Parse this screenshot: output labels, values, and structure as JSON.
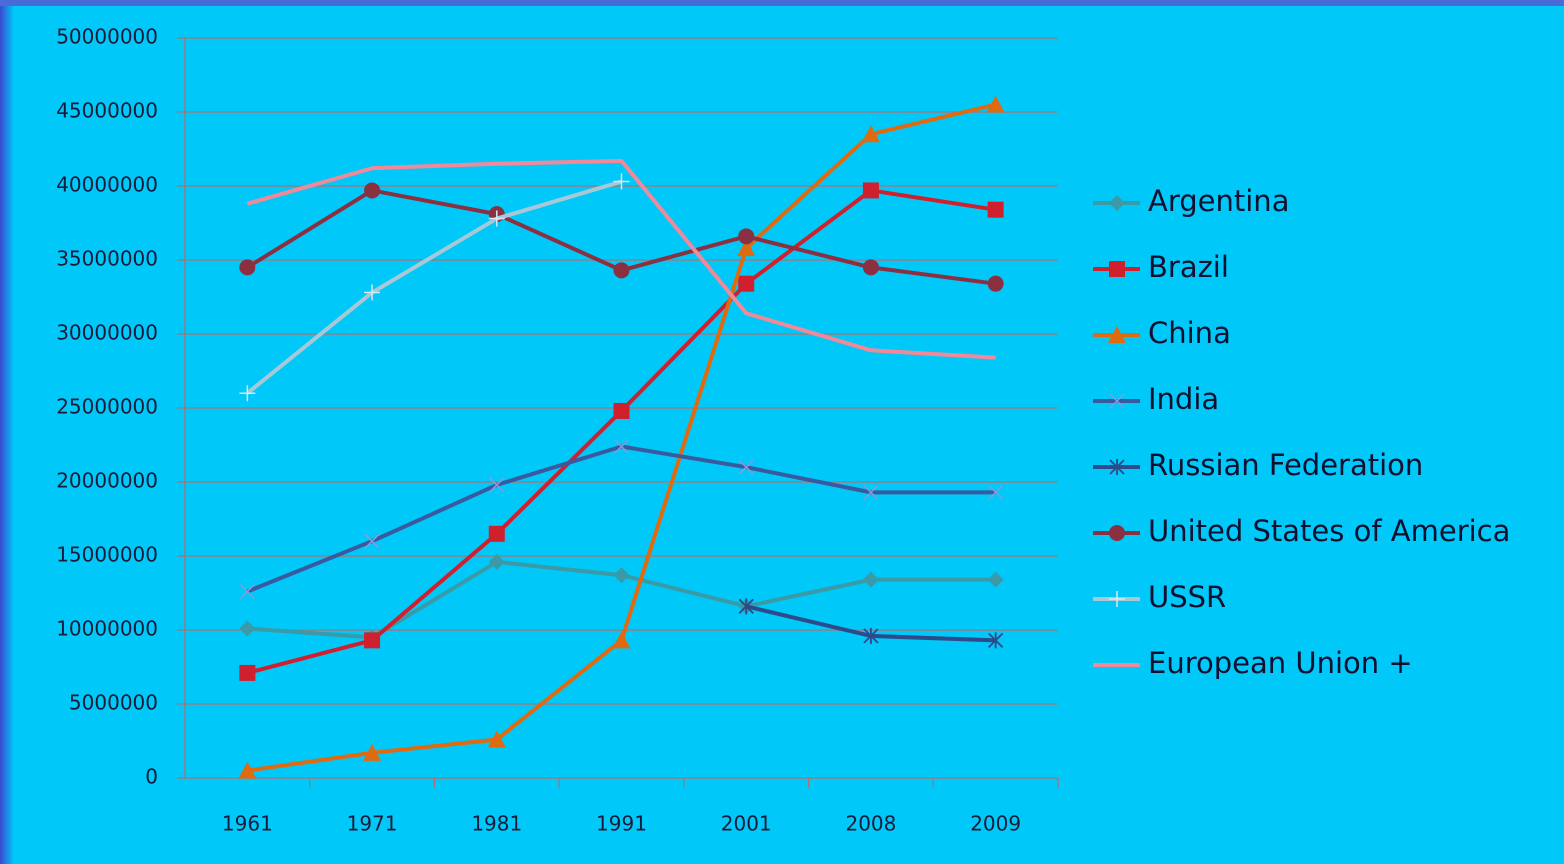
{
  "chart_data": {
    "type": "line",
    "categories": [
      "1961",
      "1971",
      "1981",
      "1991",
      "2001",
      "2008",
      "2009"
    ],
    "series": [
      {
        "name": "Argentina",
        "color": "#3a9aa8",
        "marker": "diamond",
        "values": [
          10100000,
          9500000,
          14600000,
          13700000,
          11600000,
          13400000,
          13400000
        ]
      },
      {
        "name": "Brazil",
        "color": "#d0202e",
        "marker": "square",
        "values": [
          7100000,
          9300000,
          16500000,
          24800000,
          33400000,
          39700000,
          38400000
        ]
      },
      {
        "name": "China",
        "color": "#e06a10",
        "marker": "triangle",
        "values": [
          500000,
          1700000,
          2600000,
          9300000,
          35800000,
          43500000,
          45500000
        ]
      },
      {
        "name": "India",
        "color": "#3a5aa0",
        "marker": "x",
        "values": [
          12600000,
          16000000,
          19800000,
          22400000,
          21000000,
          19300000,
          19300000
        ]
      },
      {
        "name": "Russian Federation",
        "color": "#2d4a8a",
        "marker": "star",
        "values": [
          null,
          null,
          null,
          null,
          11600000,
          9600000,
          9300000
        ]
      },
      {
        "name": "United States of America",
        "color": "#8b3040",
        "marker": "circle",
        "values": [
          34500000,
          39700000,
          38100000,
          34300000,
          36600000,
          34500000,
          33400000
        ]
      },
      {
        "name": "USSR",
        "color": "#a8c8d8",
        "marker": "plus",
        "values": [
          26000000,
          32800000,
          37800000,
          40300000,
          null,
          null,
          null
        ]
      },
      {
        "name": "European Union +",
        "color": "#f08a9a",
        "marker": "none",
        "values": [
          38800000,
          41200000,
          41500000,
          41700000,
          31400000,
          28900000,
          28400000
        ]
      }
    ],
    "ylim": [
      0,
      50000000
    ],
    "yticks": [
      0,
      5000000,
      10000000,
      15000000,
      20000000,
      25000000,
      30000000,
      35000000,
      40000000,
      45000000,
      50000000
    ],
    "grid": true,
    "legend": "right"
  }
}
